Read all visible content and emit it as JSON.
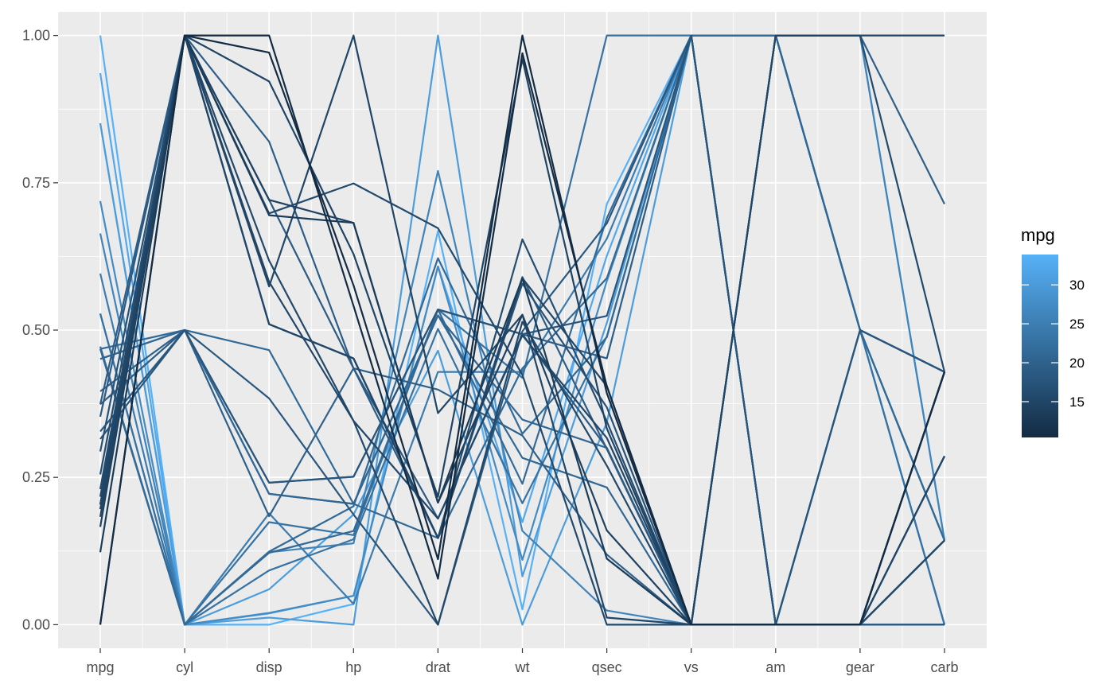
{
  "chart_data": {
    "type": "line",
    "subtype": "parallel-coordinates",
    "title": "",
    "xlabel": "",
    "ylabel": "",
    "categories": [
      "mpg",
      "cyl",
      "disp",
      "hp",
      "drat",
      "wt",
      "qsec",
      "vs",
      "am",
      "gear",
      "carb"
    ],
    "ylim": [
      -0.04,
      1.04
    ],
    "y_ticks": [
      0,
      0.25,
      0.5,
      0.75,
      1.0
    ],
    "y_tick_labels": [
      "0.00",
      "0.25",
      "0.50",
      "0.75",
      "1.00"
    ],
    "grid": true,
    "legend": {
      "title": "mpg",
      "placement": "right",
      "type": "colorbar",
      "range": [
        10.4,
        33.9
      ],
      "ticks": [
        15,
        20,
        25,
        30
      ],
      "tick_labels": [
        "15",
        "20",
        "25",
        "30"
      ],
      "color_low": "#132B43",
      "color_high": "#56B1F7"
    },
    "series": [
      {
        "mpg": 21.0,
        "values": [
          0.451,
          0.5,
          0.222,
          0.205,
          0.525,
          0.283,
          0.233,
          0,
          1,
          0.5,
          0.429
        ]
      },
      {
        "mpg": 21.0,
        "values": [
          0.451,
          0.5,
          0.222,
          0.205,
          0.525,
          0.348,
          0.3,
          0,
          1,
          0.5,
          0.429
        ]
      },
      {
        "mpg": 22.8,
        "values": [
          0.528,
          0,
          0.092,
          0.145,
          0.502,
          0.206,
          0.489,
          1,
          1,
          0.5,
          0
        ]
      },
      {
        "mpg": 21.4,
        "values": [
          0.468,
          0.5,
          0.466,
          0.205,
          0.147,
          0.435,
          0.588,
          1,
          0,
          0,
          0
        ]
      },
      {
        "mpg": 18.7,
        "values": [
          0.353,
          1,
          0.721,
          0.435,
          0.18,
          0.493,
          0.3,
          0,
          0,
          0,
          0.143
        ]
      },
      {
        "mpg": 18.1,
        "values": [
          0.328,
          0.5,
          0.384,
          0.187,
          0,
          0.498,
          0.681,
          1,
          0,
          0,
          0
        ]
      },
      {
        "mpg": 14.3,
        "values": [
          0.166,
          1,
          0.721,
          0.682,
          0.207,
          0.526,
          0.16,
          0,
          0,
          0,
          0.429
        ]
      },
      {
        "mpg": 24.4,
        "values": [
          0.596,
          0,
          0.189,
          0.035,
          0.429,
          0.429,
          0.655,
          1,
          0,
          0.5,
          0.143
        ]
      },
      {
        "mpg": 22.8,
        "values": [
          0.528,
          0,
          0.174,
          0.152,
          0.535,
          0.419,
          1,
          1,
          0,
          0.5,
          0.143
        ]
      },
      {
        "mpg": 19.2,
        "values": [
          0.374,
          0.5,
          0.241,
          0.251,
          0.535,
          0.493,
          0.452,
          1,
          0,
          0.5,
          0.429
        ]
      },
      {
        "mpg": 17.8,
        "values": [
          0.315,
          0.5,
          0.241,
          0.251,
          0.535,
          0.493,
          0.524,
          1,
          0,
          0.5,
          0.429
        ]
      },
      {
        "mpg": 16.4,
        "values": [
          0.255,
          1,
          0.51,
          0.452,
          0.147,
          0.654,
          0.345,
          0,
          0,
          0,
          0.286
        ]
      },
      {
        "mpg": 17.3,
        "values": [
          0.294,
          1,
          0.51,
          0.452,
          0.147,
          0.579,
          0.369,
          0,
          0,
          0,
          0.286
        ]
      },
      {
        "mpg": 15.2,
        "values": [
          0.204,
          1,
          0.51,
          0.452,
          0.147,
          0.588,
          0.405,
          0,
          0,
          0,
          0.286
        ]
      },
      {
        "mpg": 10.4,
        "values": [
          0,
          1,
          1,
          0.541,
          0.078,
          0.97,
          0.405,
          0,
          0,
          0,
          0.429
        ]
      },
      {
        "mpg": 10.4,
        "values": [
          0,
          1,
          0.971,
          0.576,
          0.111,
          1,
          0.393,
          0,
          0,
          0,
          0.429
        ]
      },
      {
        "mpg": 14.7,
        "values": [
          0.183,
          1,
          0.922,
          0.629,
          0.217,
          0.96,
          0.333,
          0,
          0,
          0,
          0.429
        ]
      },
      {
        "mpg": 32.4,
        "values": [
          0.936,
          0,
          0.019,
          0.049,
          0.608,
          0.174,
          0.626,
          1,
          1,
          0.5,
          0
        ]
      },
      {
        "mpg": 30.4,
        "values": [
          0.851,
          0,
          0.012,
          0,
          1,
          0.082,
          0.512,
          1,
          1,
          0.5,
          0.143
        ]
      },
      {
        "mpg": 33.9,
        "values": [
          1,
          0,
          0,
          0.035,
          0.668,
          0.026,
          0.714,
          1,
          1,
          0.5,
          0
        ]
      },
      {
        "mpg": 21.5,
        "values": [
          0.472,
          0,
          0.122,
          0.159,
          0.535,
          0.239,
          0.69,
          1,
          0,
          0,
          0
        ]
      },
      {
        "mpg": 15.5,
        "values": [
          0.217,
          1,
          0.618,
          0.346,
          0,
          0.514,
          0.27,
          0,
          0,
          0,
          0.143
        ]
      },
      {
        "mpg": 15.2,
        "values": [
          0.204,
          1,
          0.582,
          0.346,
          0.18,
          0.491,
          0.317,
          0,
          0,
          0,
          0.143
        ]
      },
      {
        "mpg": 13.3,
        "values": [
          0.123,
          1,
          0.695,
          0.682,
          0.207,
          0.588,
          0.112,
          0,
          0,
          0,
          0.429
        ]
      },
      {
        "mpg": 19.2,
        "values": [
          0.374,
          1,
          0.82,
          0.435,
          0.147,
          0.59,
          0.298,
          0,
          0,
          0,
          0.143
        ]
      },
      {
        "mpg": 27.3,
        "values": [
          0.719,
          0,
          0.02,
          0.049,
          0.608,
          0.11,
          0.583,
          1,
          1,
          0.5,
          0
        ]
      },
      {
        "mpg": 26.0,
        "values": [
          0.664,
          0,
          0.123,
          0.138,
          0.77,
          0.159,
          0.024,
          0,
          1,
          1,
          0.143
        ]
      },
      {
        "mpg": 30.4,
        "values": [
          0.851,
          0,
          0.06,
          0.187,
          0.465,
          0,
          0.343,
          1,
          1,
          1,
          0.143
        ]
      },
      {
        "mpg": 15.8,
        "values": [
          0.23,
          1,
          0.698,
          0.749,
          0.673,
          0.424,
          0,
          0,
          1,
          1,
          0.429
        ]
      },
      {
        "mpg": 19.7,
        "values": [
          0.396,
          0.5,
          0.184,
          0.435,
          0.399,
          0.321,
          0.119,
          0,
          1,
          1,
          0.714
        ]
      },
      {
        "mpg": 15.0,
        "values": [
          0.196,
          1,
          0.574,
          1,
          0.359,
          0.526,
          0.012,
          0,
          1,
          1,
          1
        ]
      },
      {
        "mpg": 21.4,
        "values": [
          0.468,
          0,
          0.124,
          0.201,
          0.622,
          0.324,
          0.488,
          1,
          1,
          0.5,
          0.143
        ]
      }
    ]
  }
}
